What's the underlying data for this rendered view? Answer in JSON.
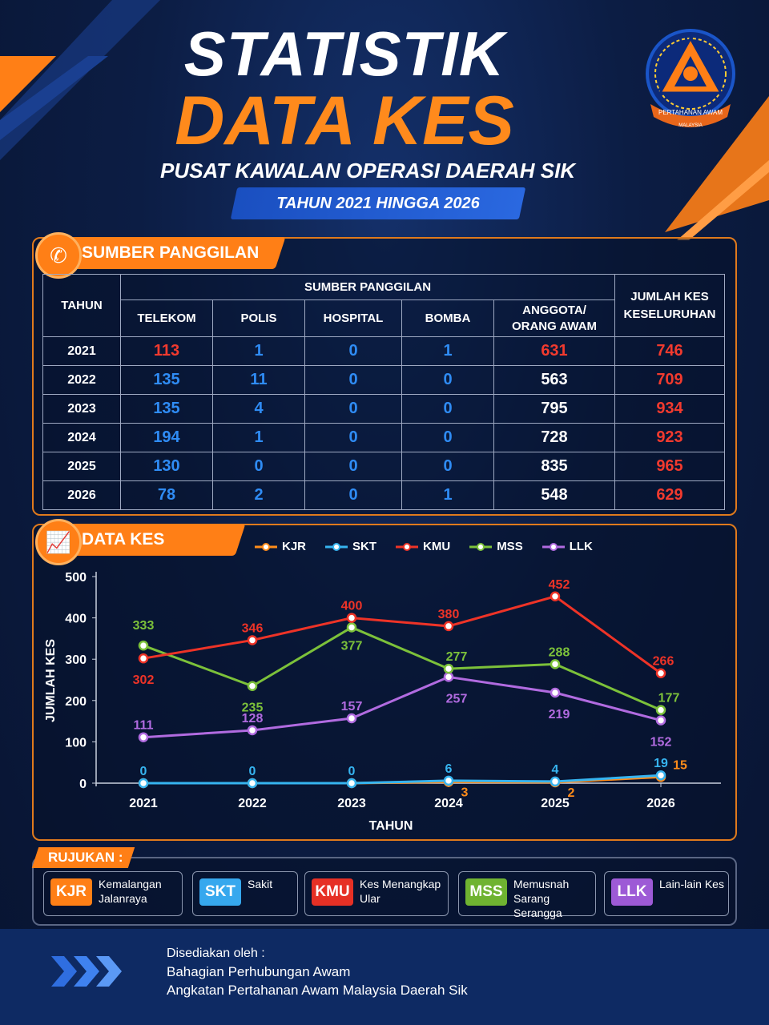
{
  "header": {
    "title_line1": "STATISTIK",
    "title_line2": "DATA KES",
    "subtitle": "PUSAT KAWALAN OPERASI DAERAH SIK",
    "year_band": "TAHUN 2021 HINGGA 2026",
    "logo_text_top": "PERTAHANAN AWAM",
    "logo_text_bottom": "MALAYSIA"
  },
  "calls_section": {
    "tab_label": "SUMBER PANGGILAN",
    "icon": "phone-icon",
    "table": {
      "col_tahun": "TAHUN",
      "group_header": "SUMBER PANGGILAN",
      "cols": [
        "TELEKOM",
        "POLIS",
        "HOSPITAL",
        "BOMBA",
        "ANGGOTA/\nORANG AWAM"
      ],
      "col_total": "JUMLAH KES\nKESELURUHAN",
      "rows": [
        {
          "year": "2021",
          "telekom": "113",
          "polis": "1",
          "hospital": "0",
          "bomba": "1",
          "anggota": "631",
          "total": "746"
        },
        {
          "year": "2022",
          "telekom": "135",
          "polis": "11",
          "hospital": "0",
          "bomba": "0",
          "anggota": "563",
          "total": "709"
        },
        {
          "year": "2023",
          "telekom": "135",
          "polis": "4",
          "hospital": "0",
          "bomba": "0",
          "anggota": "795",
          "total": "934"
        },
        {
          "year": "2024",
          "telekom": "194",
          "polis": "1",
          "hospital": "0",
          "bomba": "0",
          "anggota": "728",
          "total": "923"
        },
        {
          "year": "2025",
          "telekom": "130",
          "polis": "0",
          "hospital": "0",
          "bomba": "0",
          "anggota": "835",
          "total": "965"
        },
        {
          "year": "2026",
          "telekom": "78",
          "polis": "2",
          "hospital": "0",
          "bomba": "1",
          "anggota": "548",
          "total": "629"
        }
      ]
    }
  },
  "chart_section": {
    "tab_label": "DATA KES",
    "icon": "growth-chart-icon"
  },
  "chart_data": {
    "type": "line",
    "x": [
      "2021",
      "2022",
      "2023",
      "2024",
      "2025",
      "2026"
    ],
    "xlabel": "TAHUN",
    "ylabel": "JUMLAH KES",
    "ylim": [
      0,
      500
    ],
    "yticks": [
      0,
      100,
      200,
      300,
      400,
      500
    ],
    "legend_position": "top",
    "series": [
      {
        "name": "KJR",
        "color": "#ff8c1a",
        "values": [
          0,
          0,
          0,
          3,
          2,
          15
        ],
        "labels": [
          "",
          "",
          "",
          "3",
          "2",
          "15"
        ]
      },
      {
        "name": "SKT",
        "color": "#36b4f0",
        "values": [
          0,
          0,
          0,
          6,
          4,
          19
        ],
        "labels": [
          "0",
          "0",
          "0",
          "6",
          "4",
          "19"
        ]
      },
      {
        "name": "KMU",
        "color": "#ee3327",
        "values": [
          302,
          346,
          400,
          380,
          452,
          266
        ],
        "labels": [
          "302",
          "346",
          "400",
          "380",
          "452",
          "266"
        ]
      },
      {
        "name": "MSS",
        "color": "#7cc13a",
        "values": [
          333,
          235,
          377,
          277,
          288,
          177
        ],
        "labels": [
          "333",
          "235",
          "377",
          "277",
          "288",
          "177"
        ]
      },
      {
        "name": "LLK",
        "color": "#b16be0",
        "values": [
          111,
          128,
          157,
          257,
          219,
          152
        ],
        "labels": [
          "111",
          "128",
          "157",
          "257",
          "219",
          "152"
        ]
      }
    ]
  },
  "reference": {
    "title": "RUJUKAN :",
    "items": [
      {
        "code": "KJR",
        "desc": "Kemalangan\nJalanraya",
        "color": "#ff7f16"
      },
      {
        "code": "SKT",
        "desc": "Sakit",
        "color": "#36a8ee"
      },
      {
        "code": "KMU",
        "desc": "Kes Menangkap\nUlar",
        "color": "#e63025"
      },
      {
        "code": "MSS",
        "desc": "Memusnah\nSarang Serangga",
        "color": "#6fb331"
      },
      {
        "code": "LLK",
        "desc": "Lain-lain Kes",
        "color": "#9d5ad6"
      }
    ]
  },
  "footer": {
    "line1": "Disediakan oleh :",
    "line2": "Bahagian Perhubungan Awam",
    "line3": "Angkatan Pertahanan Awam Malaysia Daerah Sik"
  }
}
